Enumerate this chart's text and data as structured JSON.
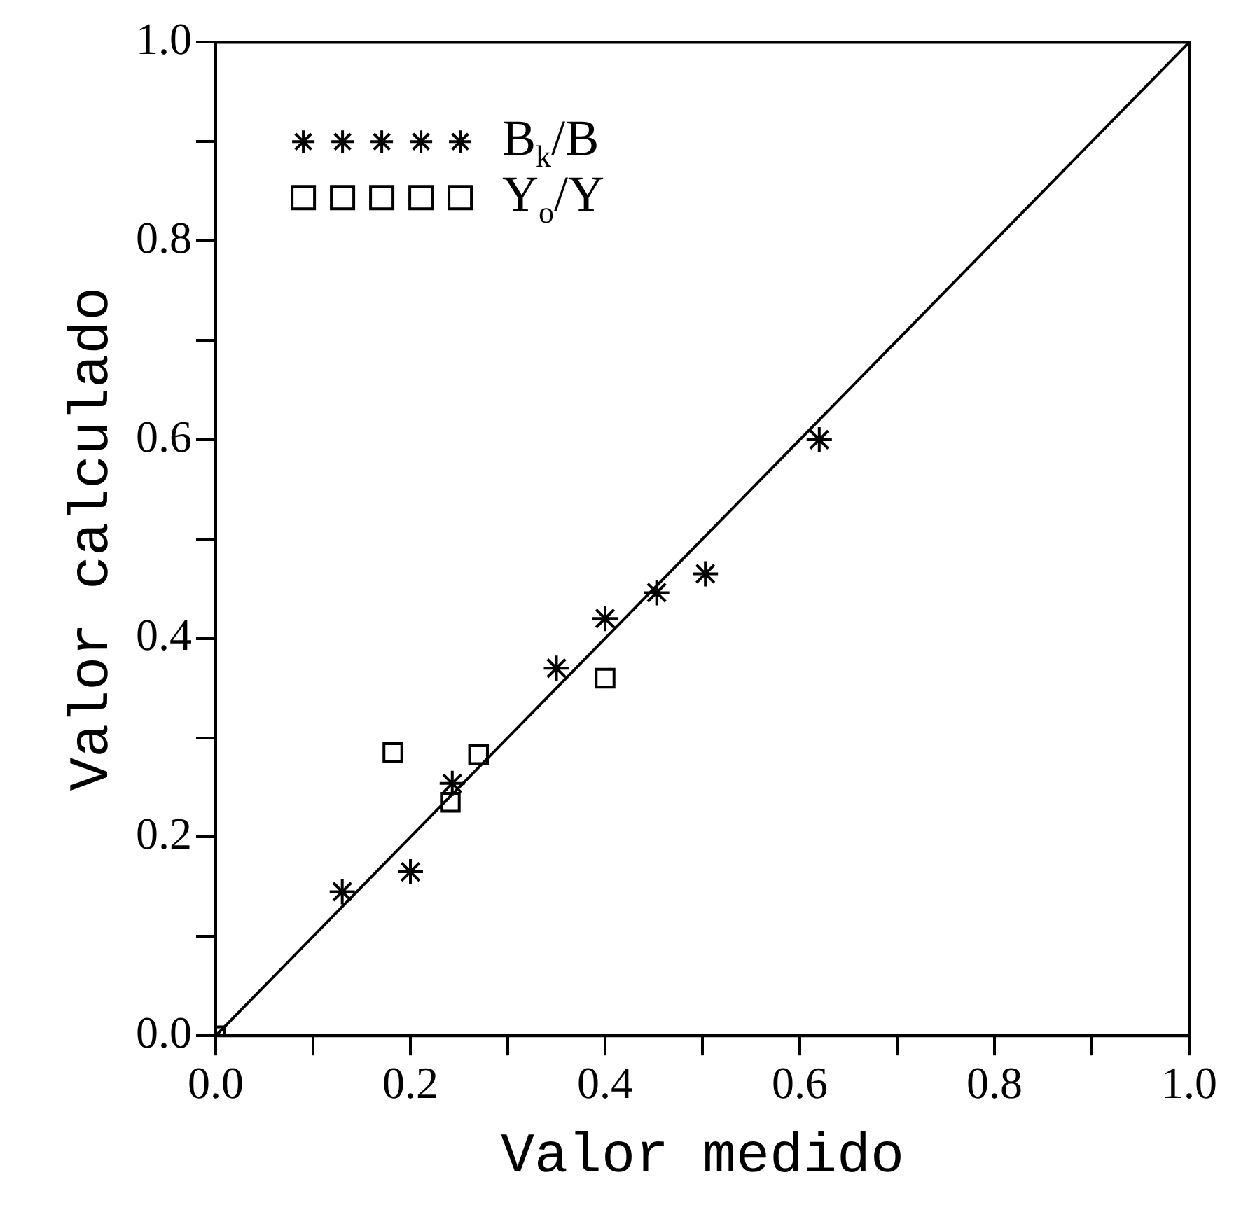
{
  "chart_data": {
    "type": "scatter",
    "xlabel": "Valor medido",
    "ylabel": "Valor calculado",
    "xlim": [
      0,
      1
    ],
    "ylim": [
      0,
      1
    ],
    "xticks": [
      {
        "value": 0,
        "label": "0.0"
      },
      {
        "value": 0.1,
        "label": null
      },
      0.2,
      {
        "value": 0.3,
        "label": null
      },
      0.4,
      {
        "value": 0.5,
        "label": null
      },
      0.6,
      {
        "value": 0.7,
        "label": null
      },
      0.8,
      {
        "value": 0.9,
        "label": null
      },
      {
        "value": 1,
        "label": "1.0"
      }
    ],
    "yticks": [
      {
        "value": 0,
        "label": "0.0"
      },
      {
        "value": 0.1,
        "label": null
      },
      0.2,
      {
        "value": 0.3,
        "label": null
      },
      0.4,
      {
        "value": 0.5,
        "label": null
      },
      0.6,
      {
        "value": 0.7,
        "label": null
      },
      0.8,
      {
        "value": 0.9,
        "label": null
      },
      {
        "value": 1,
        "label": "1.0"
      }
    ],
    "grid": false,
    "legend": "top left",
    "series": [
      {
        "name": "B$_{k}$/B",
        "color": "#000000",
        "marker": "cross",
        "x": [
          0.13,
          0.2,
          0.243,
          0.35,
          0.4,
          0.453,
          0.503,
          0.62
        ],
        "values": [
          0.145,
          0.165,
          0.254,
          0.37,
          0.42,
          0.446,
          0.465,
          0.6
        ]
      },
      {
        "name": "Y$_{o}$/Y",
        "color": "#000000",
        "marker": "square",
        "x": [
          0,
          0.182,
          0.241,
          0.27,
          0.4
        ],
        "values": [
          0,
          0.285,
          0.235,
          0.283,
          0.36
        ]
      },
      {
        "type": "line",
        "color": "#000000",
        "marker": "none",
        "line_style": "solid",
        "x": [
          0,
          1
        ],
        "values": [
          0,
          1
        ]
      }
    ]
  }
}
